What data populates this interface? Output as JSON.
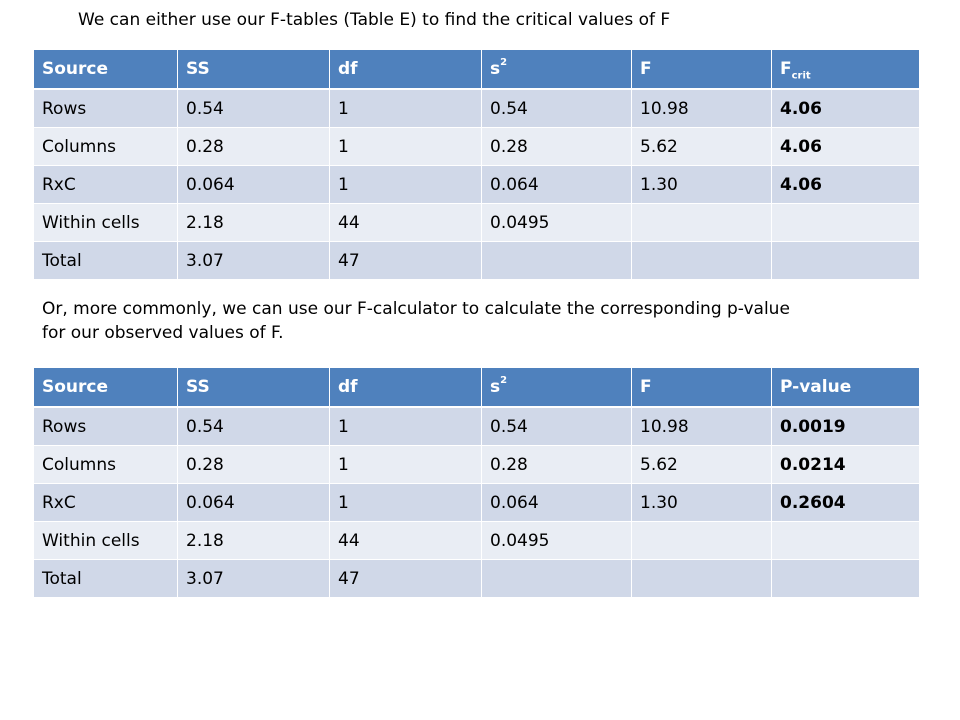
{
  "intro_text": "We can either use our F-tables (Table E) to find the critical values of F",
  "mid_text": "Or, more commonly, we can use our F-calculator to calculate the corresponding p-value\nfor our observed values of F.",
  "table1": {
    "headers": {
      "source": "Source",
      "ss": "SS",
      "df": "df",
      "s2_base": "s",
      "s2_sup": "2",
      "f": "F",
      "fcrit_base": "F",
      "fcrit_sub": "crit"
    },
    "rows": [
      {
        "source": "Rows",
        "ss": "0.54",
        "df": "1",
        "s2": "0.54",
        "f": "10.98",
        "last": "4.06"
      },
      {
        "source": "Columns",
        "ss": "0.28",
        "df": "1",
        "s2": "0.28",
        "f": "5.62",
        "last": "4.06"
      },
      {
        "source": "RxC",
        "ss": "0.064",
        "df": "1",
        "s2": "0.064",
        "f": "1.30",
        "last": "4.06"
      },
      {
        "source": "Within cells",
        "ss": "2.18",
        "df": "44",
        "s2": "0.0495",
        "f": "",
        "last": ""
      },
      {
        "source": "Total",
        "ss": "3.07",
        "df": "47",
        "s2": "",
        "f": "",
        "last": ""
      }
    ]
  },
  "table2": {
    "headers": {
      "source": "Source",
      "ss": "SS",
      "df": "df",
      "s2_base": "s",
      "s2_sup": "2",
      "f": "F",
      "pvalue": "P-value"
    },
    "rows": [
      {
        "source": "Rows",
        "ss": "0.54",
        "df": "1",
        "s2": "0.54",
        "f": "10.98",
        "last": "0.0019"
      },
      {
        "source": "Columns",
        "ss": "0.28",
        "df": "1",
        "s2": "0.28",
        "f": "5.62",
        "last": "0.0214"
      },
      {
        "source": "RxC",
        "ss": "0.064",
        "df": "1",
        "s2": "0.064",
        "f": "1.30",
        "last": "0.2604"
      },
      {
        "source": "Within cells",
        "ss": "2.18",
        "df": "44",
        "s2": "0.0495",
        "f": "",
        "last": ""
      },
      {
        "source": "Total",
        "ss": "3.07",
        "df": "47",
        "s2": "",
        "f": "",
        "last": ""
      }
    ]
  },
  "colors": {
    "header_bg": "#4f81bd",
    "row_odd_bg": "#d0d8e8",
    "row_even_bg": "#e9edf4"
  }
}
